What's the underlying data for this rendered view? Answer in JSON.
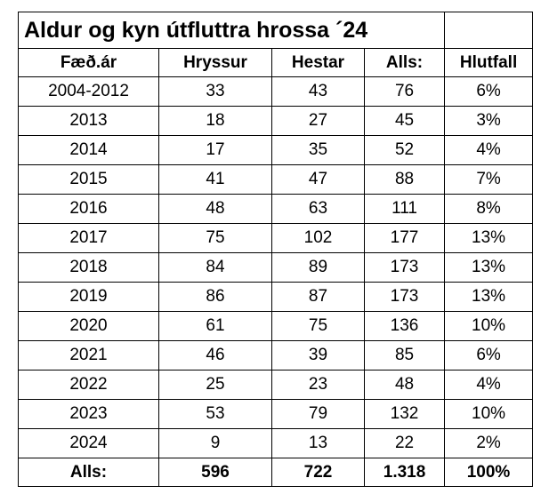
{
  "title": "Aldur og kyn útfluttra hrossa ´24",
  "headers": [
    "Fæð.ár",
    "Hryssur",
    "Hestar",
    "Alls:",
    "Hlutfall"
  ],
  "rows": [
    [
      "2004-2012",
      "33",
      "43",
      "76",
      "6%"
    ],
    [
      "2013",
      "18",
      "27",
      "45",
      "3%"
    ],
    [
      "2014",
      "17",
      "35",
      "52",
      "4%"
    ],
    [
      "2015",
      "41",
      "47",
      "88",
      "7%"
    ],
    [
      "2016",
      "48",
      "63",
      "111",
      "8%"
    ],
    [
      "2017",
      "75",
      "102",
      "177",
      "13%"
    ],
    [
      "2018",
      "84",
      "89",
      "173",
      "13%"
    ],
    [
      "2019",
      "86",
      "87",
      "173",
      "13%"
    ],
    [
      "2020",
      "61",
      "75",
      "136",
      "10%"
    ],
    [
      "2021",
      "46",
      "39",
      "85",
      "6%"
    ],
    [
      "2022",
      "25",
      "23",
      "48",
      "4%"
    ],
    [
      "2023",
      "53",
      "79",
      "132",
      "10%"
    ],
    [
      "2024",
      "9",
      "13",
      "22",
      "2%"
    ]
  ],
  "totals": [
    "Alls:",
    "596",
    "722",
    "1.318",
    "100%"
  ],
  "chart_data": {
    "type": "table",
    "title": "Aldur og kyn útfluttra hrossa ´24",
    "columns": [
      "Fæð.ár",
      "Hryssur",
      "Hestar",
      "Alls:",
      "Hlutfall"
    ],
    "rows": [
      [
        "2004-2012",
        33,
        43,
        76,
        "6%"
      ],
      [
        "2013",
        18,
        27,
        45,
        "3%"
      ],
      [
        "2014",
        17,
        35,
        52,
        "4%"
      ],
      [
        "2015",
        41,
        47,
        88,
        "7%"
      ],
      [
        "2016",
        48,
        63,
        111,
        "8%"
      ],
      [
        "2017",
        75,
        102,
        177,
        "13%"
      ],
      [
        "2018",
        84,
        89,
        173,
        "13%"
      ],
      [
        "2019",
        86,
        87,
        173,
        "13%"
      ],
      [
        "2020",
        61,
        75,
        136,
        "10%"
      ],
      [
        "2021",
        46,
        39,
        85,
        "6%"
      ],
      [
        "2022",
        25,
        23,
        48,
        "4%"
      ],
      [
        "2023",
        53,
        79,
        132,
        "10%"
      ],
      [
        "2024",
        9,
        13,
        22,
        "2%"
      ]
    ],
    "totals": [
      "Alls:",
      596,
      722,
      "1.318",
      "100%"
    ]
  }
}
